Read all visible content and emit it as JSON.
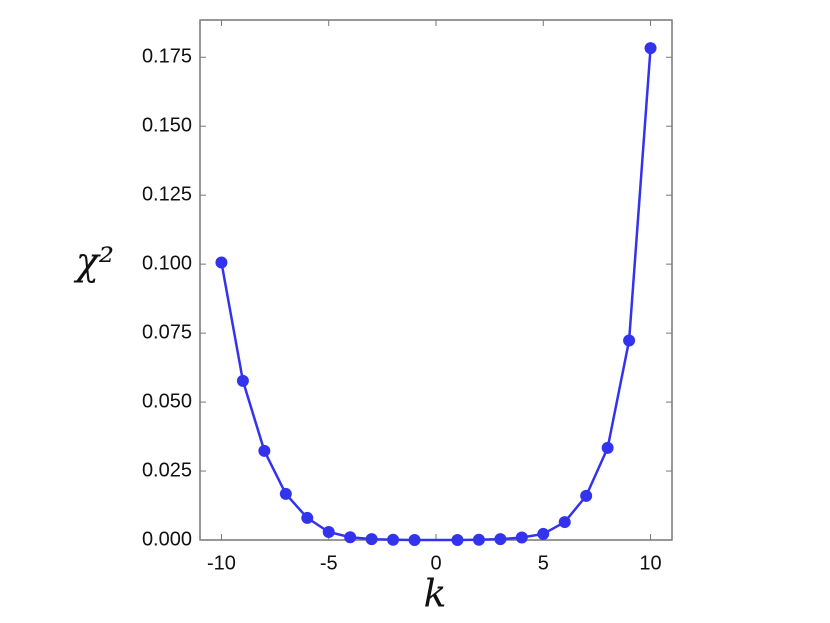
{
  "chart_data": {
    "type": "line",
    "x_label": "k",
    "y_label": "χ²",
    "x": [
      -10,
      -9,
      -8,
      -7,
      -6,
      -5,
      -4,
      -3,
      -2,
      -1,
      1,
      2,
      3,
      4,
      5,
      6,
      7,
      8,
      9,
      10
    ],
    "series": [
      {
        "color": "#3333ee",
        "values": [
          0.1006,
          0.0577,
          0.0323,
          0.0167,
          0.008,
          0.0029,
          0.001,
          0.0003,
          0.0001,
          0.0,
          0.0,
          0.0001,
          0.0003,
          0.0009,
          0.0022,
          0.0065,
          0.016,
          0.0334,
          0.0723,
          0.1783
        ]
      }
    ],
    "xlim": [
      -11,
      11
    ],
    "ylim": [
      0,
      0.1885
    ],
    "xticks": [
      -10,
      -5,
      0,
      5,
      10
    ],
    "yticks": [
      {
        "value": 0,
        "label": "0.000"
      },
      {
        "value": 0.025,
        "label": "0.025"
      },
      {
        "value": 0.05,
        "label": "0.050"
      },
      {
        "value": 0.075,
        "label": "0.075"
      },
      {
        "value": 0.1,
        "label": "0.100"
      },
      {
        "value": 0.125,
        "label": "0.125"
      },
      {
        "value": 0.15,
        "label": "0.150"
      },
      {
        "value": 0.175,
        "label": "0.175"
      }
    ],
    "grid": false
  }
}
